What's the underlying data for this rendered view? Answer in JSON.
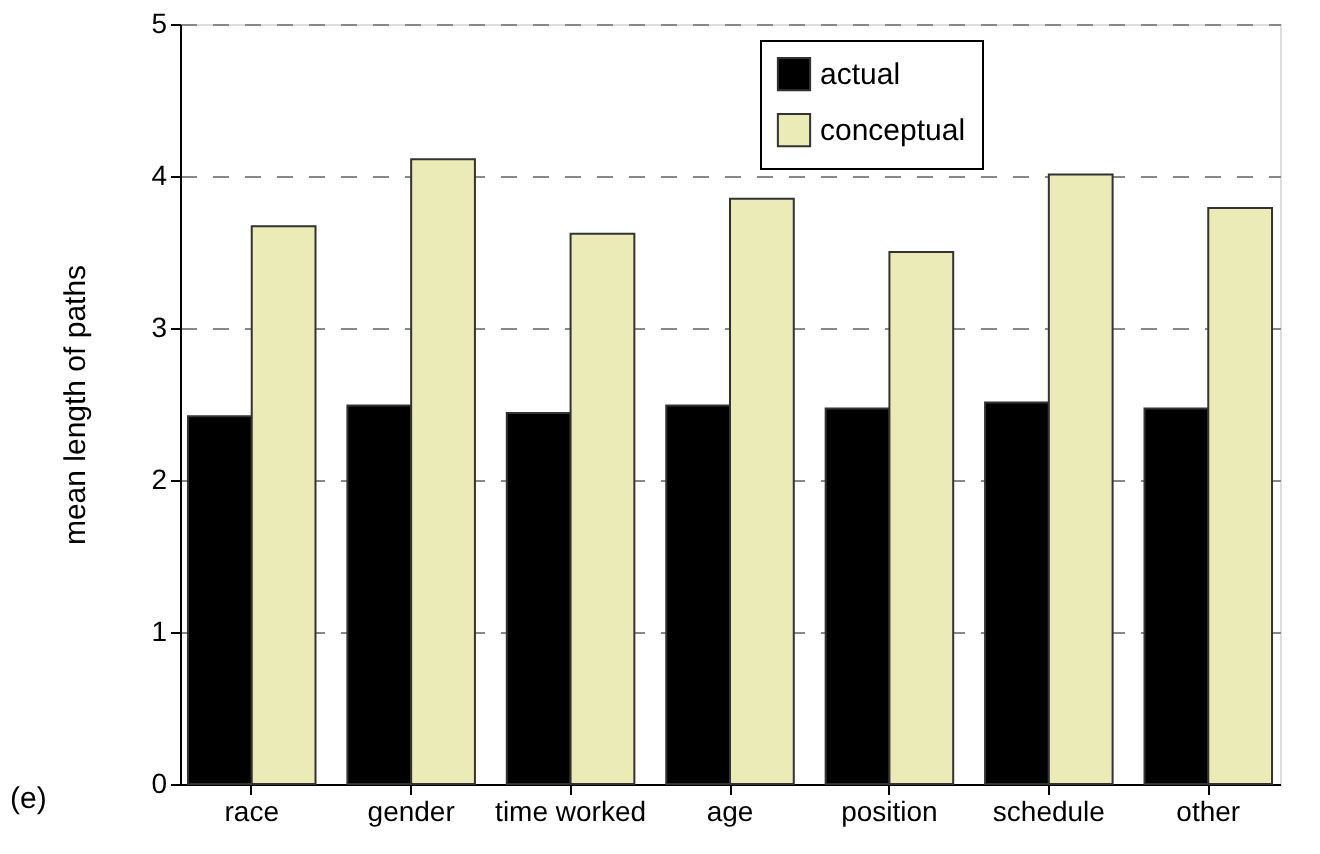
{
  "chart_data": {
    "type": "bar",
    "ylabel": "mean length of paths",
    "categories": [
      "race",
      "gender",
      "time worked",
      "age",
      "position",
      "schedule",
      "other"
    ],
    "series": [
      {
        "name": "actual",
        "color": "#000000",
        "values": [
          2.42,
          2.49,
          2.44,
          2.49,
          2.47,
          2.51,
          2.47
        ]
      },
      {
        "name": "conceptual",
        "color": "#ebebb8",
        "values": [
          3.67,
          4.11,
          3.62,
          3.85,
          3.5,
          4.01,
          3.79
        ]
      }
    ],
    "ylim": [
      0,
      5
    ],
    "yticks": [
      0,
      1,
      2,
      3,
      4,
      5
    ],
    "grid": "y",
    "legend": "top right",
    "annotations": [
      "(e)"
    ]
  }
}
